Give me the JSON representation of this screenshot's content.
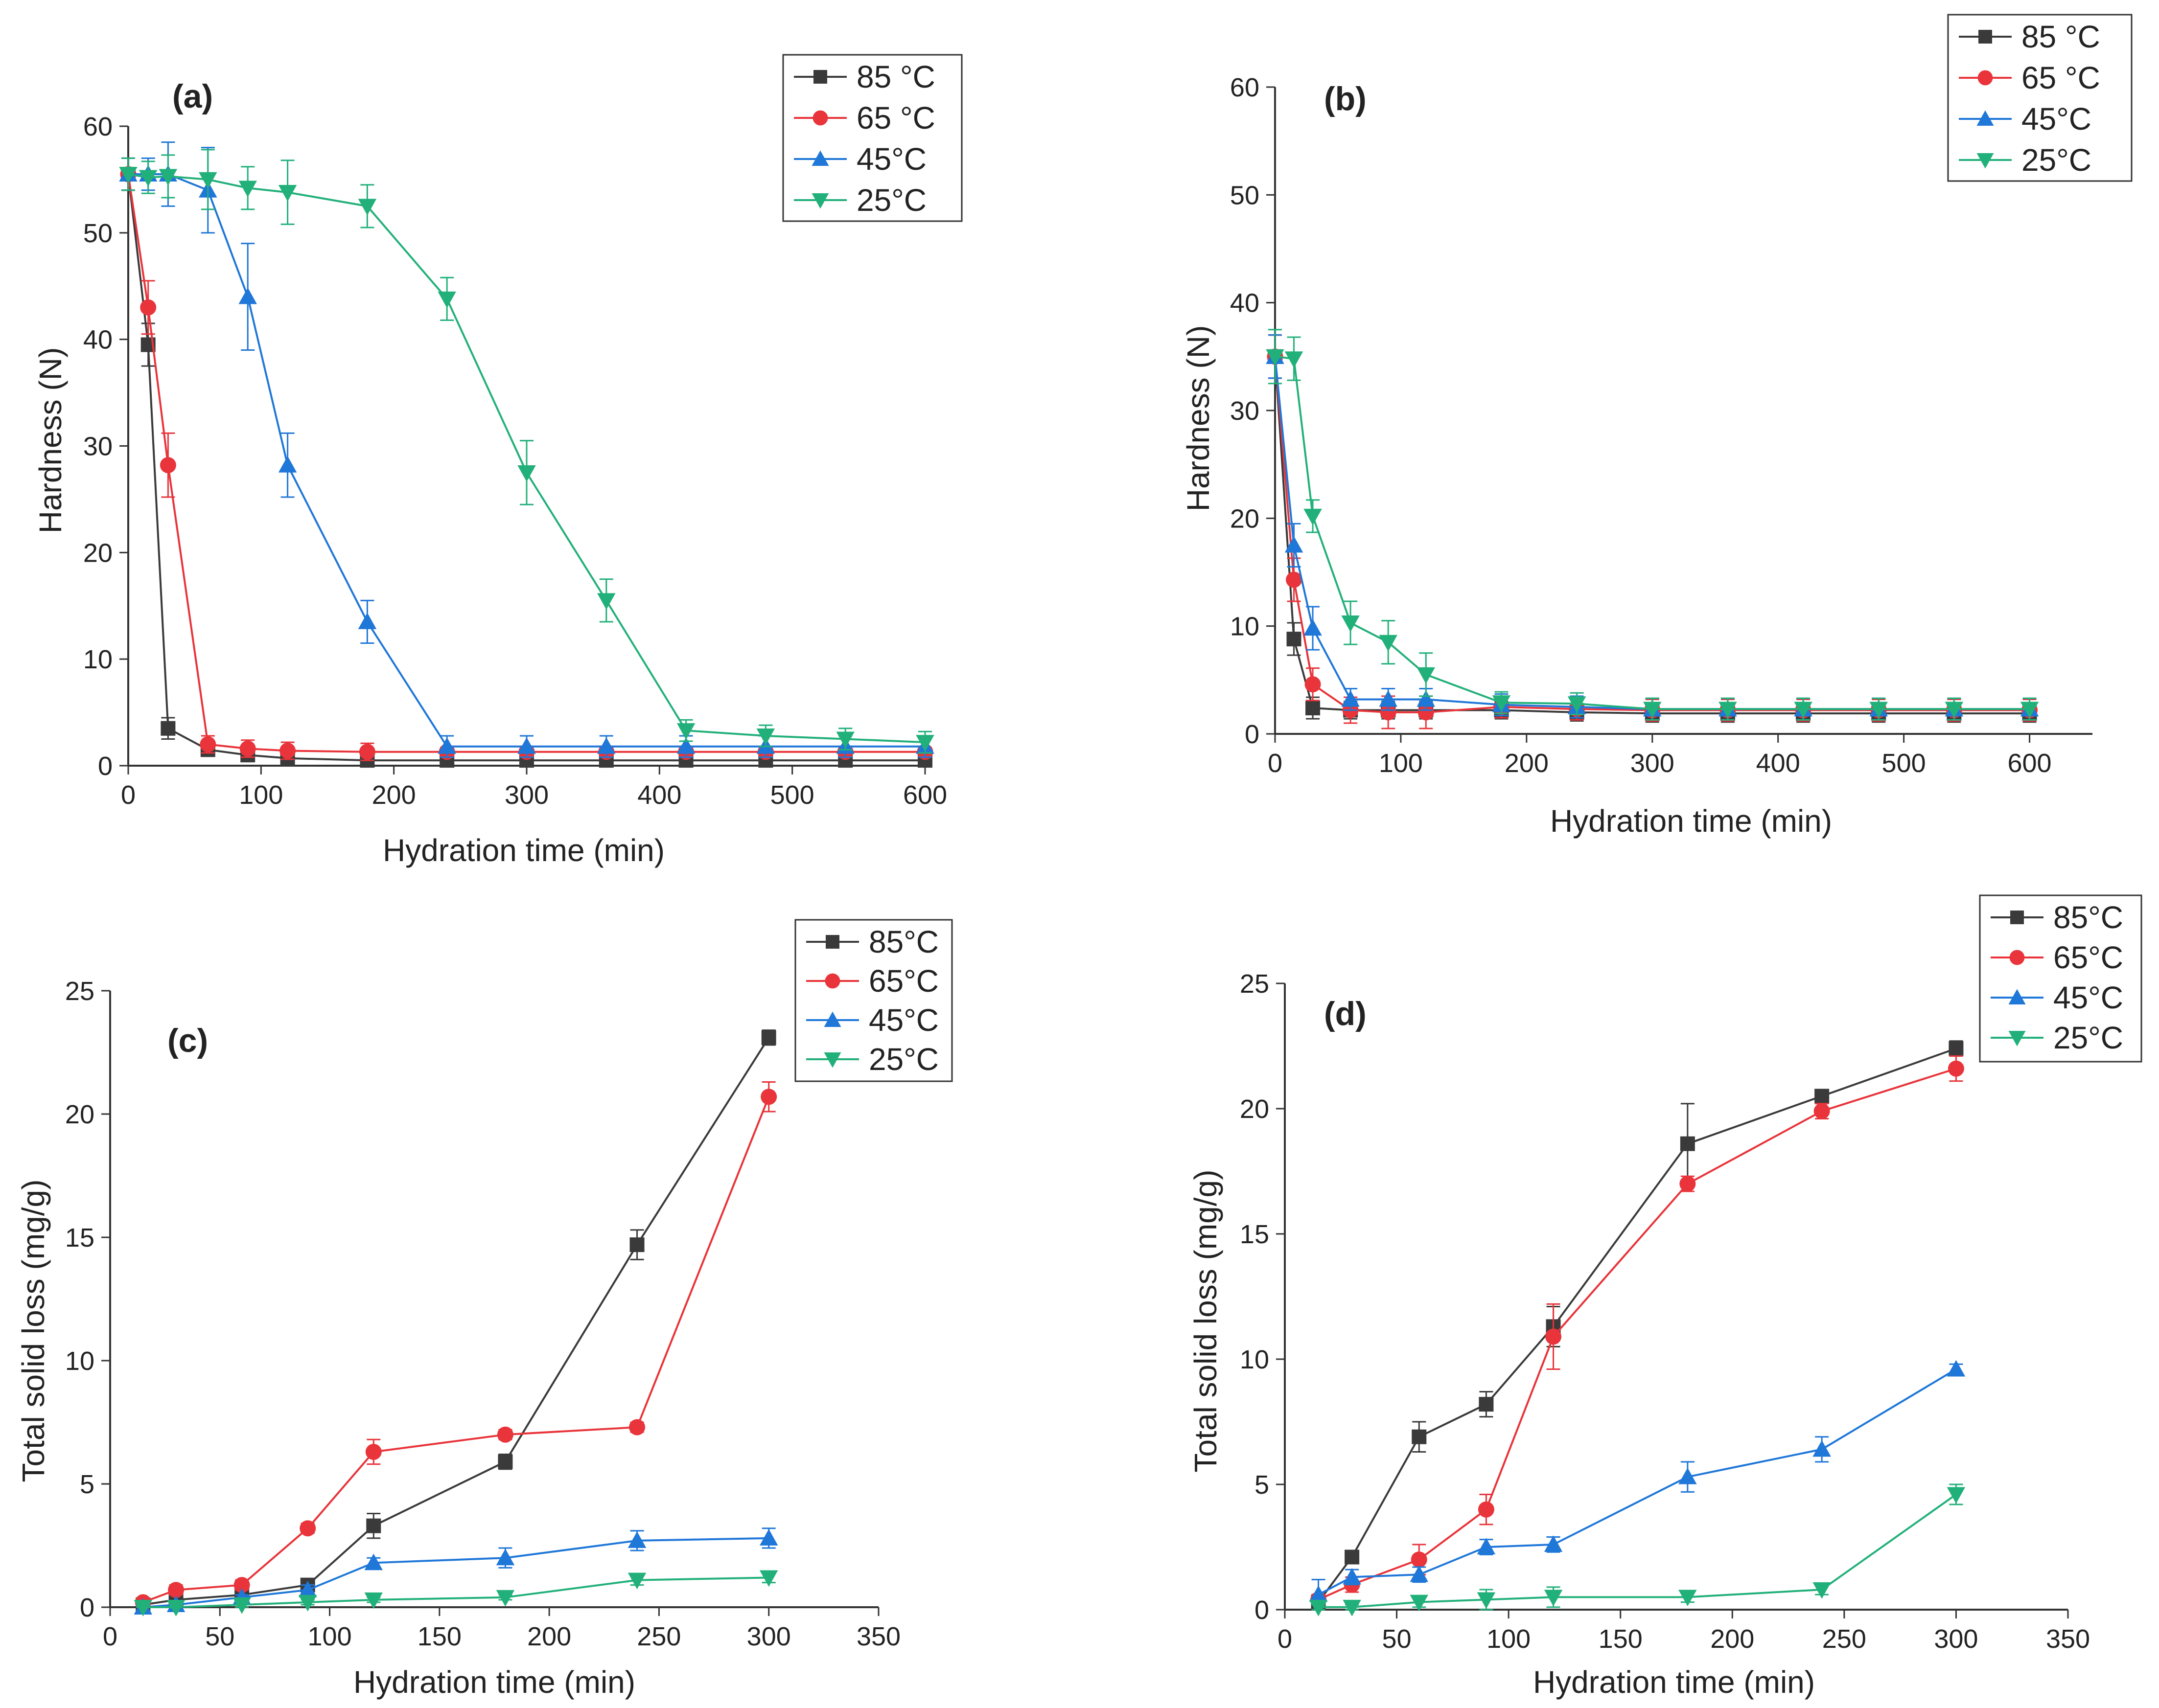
{
  "figure": {
    "panels_order": [
      "a",
      "b",
      "c",
      "d"
    ]
  },
  "chart_data": [
    {
      "id": "a",
      "panel_label": "(a)",
      "type": "line",
      "title": "",
      "xlabel": "Hydration time (min)",
      "ylabel": "Hardness (N)",
      "xlim": [
        0,
        600
      ],
      "ylim": [
        0,
        60
      ],
      "xticks": [
        0,
        100,
        200,
        300,
        400,
        500,
        600
      ],
      "yticks": [
        0,
        10,
        20,
        30,
        40,
        50,
        60
      ],
      "x": [
        0,
        15,
        30,
        60,
        90,
        120,
        180,
        240,
        300,
        360,
        420,
        480,
        540,
        600
      ],
      "legend_position": "top-right",
      "series": [
        {
          "name": "85 °C",
          "color": "#3a3a3a",
          "marker": "square",
          "values": [
            55.5,
            39.5,
            3.5,
            1.5,
            1.0,
            0.7,
            0.5,
            0.5,
            0.5,
            0.5,
            0.5,
            0.5,
            0.5,
            0.5
          ],
          "errors": [
            1.5,
            2.0,
            1.0,
            0.5,
            0.4,
            0.3,
            0.2,
            0.2,
            0.2,
            0.2,
            0.2,
            0.2,
            0.2,
            0.2
          ]
        },
        {
          "name": "65 °C",
          "color": "#e8343a",
          "marker": "circle",
          "values": [
            55.5,
            43.0,
            28.2,
            2.0,
            1.6,
            1.4,
            1.3,
            1.3,
            1.3,
            1.3,
            1.3,
            1.3,
            1.3,
            1.3
          ],
          "errors": [
            1.5,
            2.5,
            3.0,
            0.8,
            0.8,
            0.8,
            0.8,
            0.4,
            0.4,
            0.4,
            0.4,
            0.4,
            0.4,
            0.4
          ]
        },
        {
          "name": "45°C",
          "color": "#1f77d8",
          "marker": "triangle-up",
          "values": [
            55.5,
            55.5,
            55.5,
            54.0,
            44.0,
            28.2,
            13.5,
            1.8,
            1.8,
            1.8,
            1.8,
            1.8,
            1.8,
            1.8
          ],
          "errors": [
            1.5,
            1.5,
            3.0,
            4.0,
            5.0,
            3.0,
            2.0,
            1.0,
            1.0,
            1.0,
            1.0,
            1.0,
            1.0,
            1.0
          ]
        },
        {
          "name": "25°C",
          "color": "#22b07a",
          "marker": "triangle-down",
          "values": [
            55.5,
            55.2,
            55.3,
            55.0,
            54.2,
            53.8,
            52.5,
            43.8,
            27.5,
            15.5,
            3.3,
            2.8,
            2.5,
            2.2
          ],
          "errors": [
            1.5,
            1.5,
            2.0,
            2.8,
            2.0,
            3.0,
            2.0,
            2.0,
            3.0,
            2.0,
            1.0,
            1.0,
            1.0,
            1.0
          ]
        }
      ]
    },
    {
      "id": "b",
      "panel_label": "(b)",
      "type": "line",
      "title": "",
      "xlabel": "Hydration time (min)",
      "ylabel": "Hardness (N)",
      "xlim": [
        0,
        650
      ],
      "ylim": [
        0,
        60
      ],
      "xticks": [
        0,
        100,
        200,
        300,
        400,
        500,
        600
      ],
      "yticks": [
        0,
        10,
        20,
        30,
        40,
        50,
        60
      ],
      "x": [
        0,
        15,
        30,
        60,
        90,
        120,
        180,
        240,
        300,
        360,
        420,
        480,
        540,
        600
      ],
      "legend_position": "top-right",
      "series": [
        {
          "name": "85 °C",
          "color": "#3a3a3a",
          "marker": "square",
          "values": [
            35.0,
            8.8,
            2.4,
            2.2,
            2.2,
            2.2,
            2.2,
            2.0,
            1.9,
            1.9,
            1.9,
            1.9,
            1.9,
            1.9
          ],
          "errors": [
            2.0,
            1.5,
            1.0,
            0.8,
            0.8,
            0.8,
            0.8,
            0.8,
            0.8,
            0.8,
            0.8,
            0.8,
            0.8,
            0.8
          ]
        },
        {
          "name": "65 °C",
          "color": "#e8343a",
          "marker": "circle",
          "values": [
            35.0,
            14.3,
            4.6,
            2.2,
            2.0,
            2.0,
            2.5,
            2.3,
            2.2,
            2.2,
            2.2,
            2.2,
            2.2,
            2.2
          ],
          "errors": [
            2.0,
            2.0,
            1.5,
            1.2,
            1.5,
            1.5,
            1.0,
            1.0,
            1.0,
            1.0,
            1.0,
            1.0,
            1.0,
            1.0
          ]
        },
        {
          "name": "45°C",
          "color": "#1f77d8",
          "marker": "triangle-up",
          "values": [
            35.0,
            17.5,
            9.8,
            3.2,
            3.2,
            3.2,
            2.7,
            2.5,
            2.3,
            2.3,
            2.3,
            2.3,
            2.3,
            2.3
          ],
          "errors": [
            2.0,
            2.0,
            2.0,
            1.0,
            1.0,
            1.0,
            1.0,
            1.0,
            1.0,
            1.0,
            1.0,
            1.0,
            1.0,
            1.0
          ]
        },
        {
          "name": "25°C",
          "color": "#22b07a",
          "marker": "triangle-down",
          "values": [
            35.0,
            34.8,
            20.2,
            10.3,
            8.5,
            5.5,
            2.9,
            2.8,
            2.3,
            2.3,
            2.3,
            2.3,
            2.3,
            2.3
          ],
          "errors": [
            2.5,
            2.0,
            1.5,
            2.0,
            2.0,
            2.0,
            1.0,
            1.0,
            1.0,
            1.0,
            1.0,
            1.0,
            1.0,
            1.0
          ]
        }
      ]
    },
    {
      "id": "c",
      "panel_label": "(c)",
      "type": "line",
      "title": "",
      "xlabel": "Hydration time (min)",
      "ylabel": "Total solid loss (mg/g)",
      "xlim": [
        0,
        350
      ],
      "ylim": [
        0,
        25
      ],
      "xticks": [
        0,
        50,
        100,
        150,
        200,
        250,
        300,
        350
      ],
      "yticks": [
        0,
        5,
        10,
        15,
        20,
        25
      ],
      "x": [
        15,
        30,
        60,
        90,
        120,
        180,
        240,
        300
      ],
      "legend_position": "top-right",
      "series": [
        {
          "name": "85°C",
          "color": "#3a3a3a",
          "marker": "square",
          "values": [
            0.1,
            0.3,
            0.5,
            0.9,
            3.3,
            5.9,
            14.7,
            23.1
          ],
          "errors": [
            0.1,
            0.1,
            0.2,
            0.2,
            0.5,
            0.3,
            0.6,
            0.3
          ]
        },
        {
          "name": "65°C",
          "color": "#e8343a",
          "marker": "circle",
          "values": [
            0.2,
            0.7,
            0.9,
            3.2,
            6.3,
            7.0,
            7.3,
            20.7
          ],
          "errors": [
            0.1,
            0.2,
            0.2,
            0.2,
            0.5,
            0.2,
            0.2,
            0.6
          ]
        },
        {
          "name": "45°C",
          "color": "#1f77d8",
          "marker": "triangle-up",
          "values": [
            0.0,
            0.1,
            0.4,
            0.7,
            1.8,
            2.0,
            2.7,
            2.8
          ],
          "errors": [
            0.1,
            0.1,
            0.1,
            0.2,
            0.2,
            0.4,
            0.4,
            0.4
          ]
        },
        {
          "name": "25°C",
          "color": "#22b07a",
          "marker": "triangle-down",
          "values": [
            0.0,
            0.0,
            0.1,
            0.2,
            0.3,
            0.4,
            1.1,
            1.2
          ],
          "errors": [
            0.05,
            0.05,
            0.1,
            0.1,
            0.1,
            0.1,
            0.2,
            0.2
          ]
        }
      ]
    },
    {
      "id": "d",
      "panel_label": "(d)",
      "type": "line",
      "title": "",
      "xlabel": "Hydration time (min)",
      "ylabel": "Total solid loss (mg/g)",
      "xlim": [
        0,
        350
      ],
      "ylim": [
        0,
        25
      ],
      "xticks": [
        0,
        50,
        100,
        150,
        200,
        250,
        300,
        350
      ],
      "yticks": [
        0,
        5,
        10,
        15,
        20,
        25
      ],
      "x": [
        15,
        30,
        60,
        90,
        120,
        180,
        240,
        300
      ],
      "legend_position": "top-right",
      "series": [
        {
          "name": "85°C",
          "color": "#3a3a3a",
          "marker": "square",
          "values": [
            0.3,
            2.1,
            6.9,
            8.2,
            11.3,
            18.6,
            20.5,
            22.4
          ],
          "errors": [
            0.3,
            0.2,
            0.6,
            0.5,
            0.8,
            1.6,
            0.2,
            0.3
          ]
        },
        {
          "name": "65°C",
          "color": "#e8343a",
          "marker": "circle",
          "values": [
            0.4,
            1.0,
            2.0,
            4.0,
            10.9,
            17.0,
            19.9,
            21.6
          ],
          "errors": [
            0.2,
            0.3,
            0.6,
            0.6,
            1.3,
            0.3,
            0.3,
            0.5
          ]
        },
        {
          "name": "45°C",
          "color": "#1f77d8",
          "marker": "triangle-up",
          "values": [
            0.6,
            1.3,
            1.4,
            2.5,
            2.6,
            5.3,
            6.4,
            9.6
          ],
          "errors": [
            0.6,
            0.3,
            0.3,
            0.3,
            0.3,
            0.6,
            0.5,
            0.2
          ]
        },
        {
          "name": "25°C",
          "color": "#22b07a",
          "marker": "triangle-down",
          "values": [
            0.1,
            0.1,
            0.3,
            0.4,
            0.5,
            0.5,
            0.8,
            4.6
          ],
          "errors": [
            0.1,
            0.1,
            0.2,
            0.4,
            0.4,
            0.2,
            0.2,
            0.4
          ]
        }
      ]
    }
  ]
}
